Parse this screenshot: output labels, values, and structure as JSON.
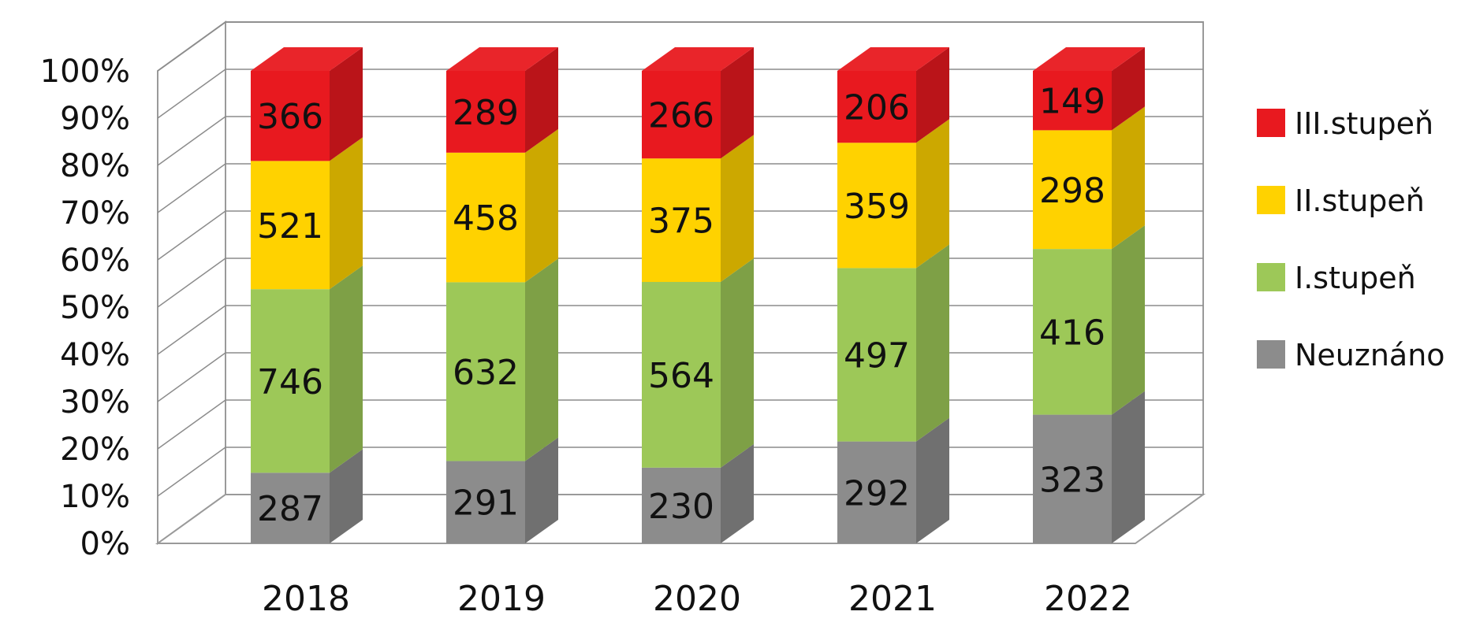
{
  "chart_data": {
    "type": "bar",
    "stacked": true,
    "normalized": "percent",
    "three_d": true,
    "categories": [
      "2018",
      "2019",
      "2020",
      "2021",
      "2022"
    ],
    "series": [
      {
        "name": "Neuznáno",
        "values": [
          287,
          291,
          230,
          292,
          323
        ],
        "color": "#8c8c8c"
      },
      {
        "name": "I.stupeň",
        "values": [
          746,
          632,
          564,
          497,
          416
        ],
        "color": "#9dc858"
      },
      {
        "name": "II.stupeň",
        "values": [
          521,
          458,
          375,
          359,
          298
        ],
        "color": "#ffd200"
      },
      {
        "name": "III.stupeň",
        "values": [
          366,
          289,
          266,
          206,
          149
        ],
        "color": "#e8191f"
      }
    ],
    "y_ticks": [
      "0%",
      "10%",
      "20%",
      "30%",
      "40%",
      "50%",
      "60%",
      "70%",
      "80%",
      "90%",
      "100%"
    ],
    "ylim": [
      0,
      100
    ],
    "grid": true,
    "legend_position": "right",
    "legend_order": [
      "III.stupeň",
      "II.stupeň",
      "I.stupeň",
      "Neuznáno"
    ],
    "title": "",
    "xlabel": "",
    "ylabel": ""
  }
}
